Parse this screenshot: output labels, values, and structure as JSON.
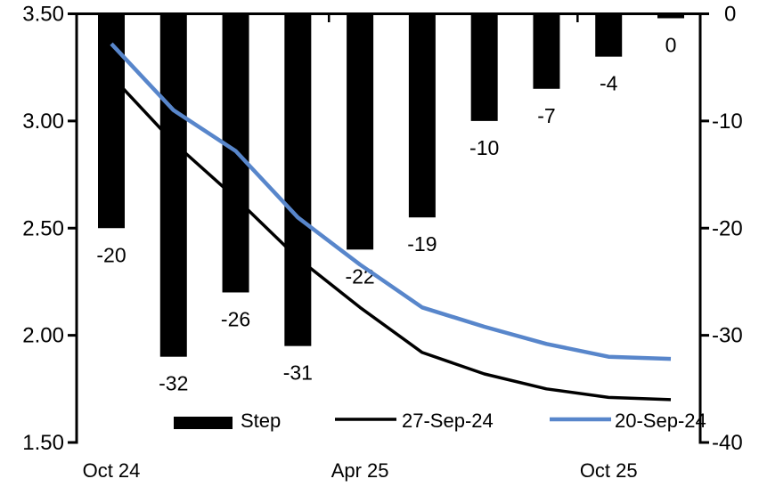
{
  "chart_data": {
    "type": "combo-bar-line",
    "description_title": "",
    "n_points": 10,
    "x_axis": {
      "tick_labels": [
        "Oct 24",
        "Apr 25",
        "Oct 25"
      ],
      "tick_label_indices": [
        0,
        4,
        8
      ],
      "boundary_tick_indices": [
        3.5,
        7.5
      ]
    },
    "left_axis": {
      "tick_labels": [
        "3.50",
        "3.00",
        "2.50",
        "2.00",
        "1.50"
      ],
      "tick_values": [
        3.5,
        3.0,
        2.5,
        2.0,
        1.5
      ]
    },
    "right_axis": {
      "tick_labels": [
        "0",
        "-10",
        "-20",
        "-30",
        "-40"
      ],
      "tick_values": [
        0,
        -10,
        -20,
        -30,
        -40
      ]
    },
    "left_ylim": [
      1.5,
      3.5
    ],
    "right_ylim": [
      -40,
      0
    ],
    "grid": false,
    "bar_series": {
      "name": "Step",
      "axis": "right",
      "color": "#000000",
      "values": [
        -20,
        -32,
        -26,
        -31,
        -22,
        -19,
        -10,
        -7,
        -4,
        0
      ],
      "data_labels": [
        "-20",
        "-32",
        "-26",
        "-31",
        "-22",
        "-19",
        "-10",
        "-7",
        "-4",
        "0"
      ]
    },
    "line_series": [
      {
        "name": "27-Sep-24",
        "axis": "left",
        "color": "#000000",
        "values": [
          3.21,
          2.9,
          2.64,
          2.36,
          2.13,
          1.92,
          1.82,
          1.75,
          1.71,
          1.7
        ]
      },
      {
        "name": "20-Sep-24",
        "axis": "left",
        "color": "#5886CB",
        "values": [
          3.36,
          3.05,
          2.86,
          2.55,
          2.33,
          2.13,
          2.04,
          1.96,
          1.9,
          1.89
        ]
      }
    ],
    "legend": [
      {
        "label": "Step",
        "type": "bar",
        "color": "#000000"
      },
      {
        "label": "27-Sep-24",
        "type": "line",
        "color": "#000000"
      },
      {
        "label": "20-Sep-24",
        "type": "line",
        "color": "#5886CB"
      }
    ],
    "legend_position": "bottom-inside"
  }
}
